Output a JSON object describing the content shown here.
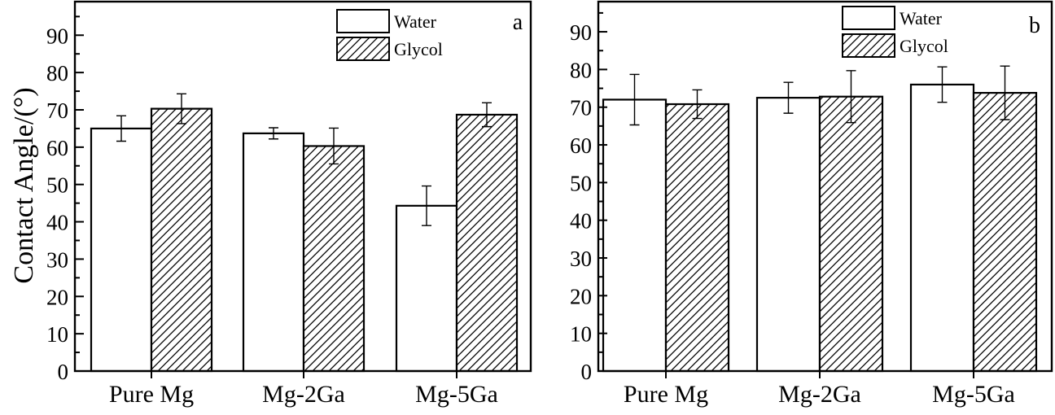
{
  "figure": {
    "y_axis_title": "Contact Angle/(°)"
  },
  "chart_data": [
    {
      "type": "bar",
      "panel_label": "a",
      "categories": [
        "Pure Mg",
        "Mg-2Ga",
        "Mg-5Ga"
      ],
      "ylabel": "Contact Angle/(°)",
      "ylim": [
        0,
        99
      ],
      "yticks": [
        0,
        10,
        20,
        30,
        40,
        50,
        60,
        70,
        80,
        90
      ],
      "yticks_labels": [
        "0",
        "10",
        "20",
        "30",
        "40",
        "50",
        "60",
        "70",
        "80",
        "90"
      ],
      "legend_position": "top-right",
      "series": [
        {
          "name": "Water",
          "fill": "white",
          "values": [
            65.0,
            63.7,
            44.3
          ],
          "errors": [
            3.4,
            1.5,
            5.3
          ]
        },
        {
          "name": "Glycol",
          "fill": "hatched",
          "values": [
            70.3,
            60.3,
            68.7
          ],
          "errors": [
            4.0,
            4.8,
            3.2
          ]
        }
      ]
    },
    {
      "type": "bar",
      "panel_label": "b",
      "categories": [
        "Pure Mg",
        "Mg-2Ga",
        "Mg-5Ga"
      ],
      "ylabel": "",
      "ylim": [
        0,
        98
      ],
      "yticks": [
        0,
        10,
        20,
        30,
        40,
        50,
        60,
        70,
        80,
        90
      ],
      "yticks_labels": [
        "0",
        "10",
        "20",
        "30",
        "40",
        "50",
        "60",
        "70",
        "80",
        "90"
      ],
      "legend_position": "top-right",
      "series": [
        {
          "name": "Water",
          "fill": "white",
          "values": [
            72.0,
            72.5,
            76.0
          ],
          "errors": [
            6.7,
            4.1,
            4.7
          ]
        },
        {
          "name": "Glycol",
          "fill": "hatched",
          "values": [
            70.8,
            72.8,
            73.8
          ],
          "errors": [
            3.8,
            6.9,
            7.1
          ]
        }
      ]
    }
  ]
}
